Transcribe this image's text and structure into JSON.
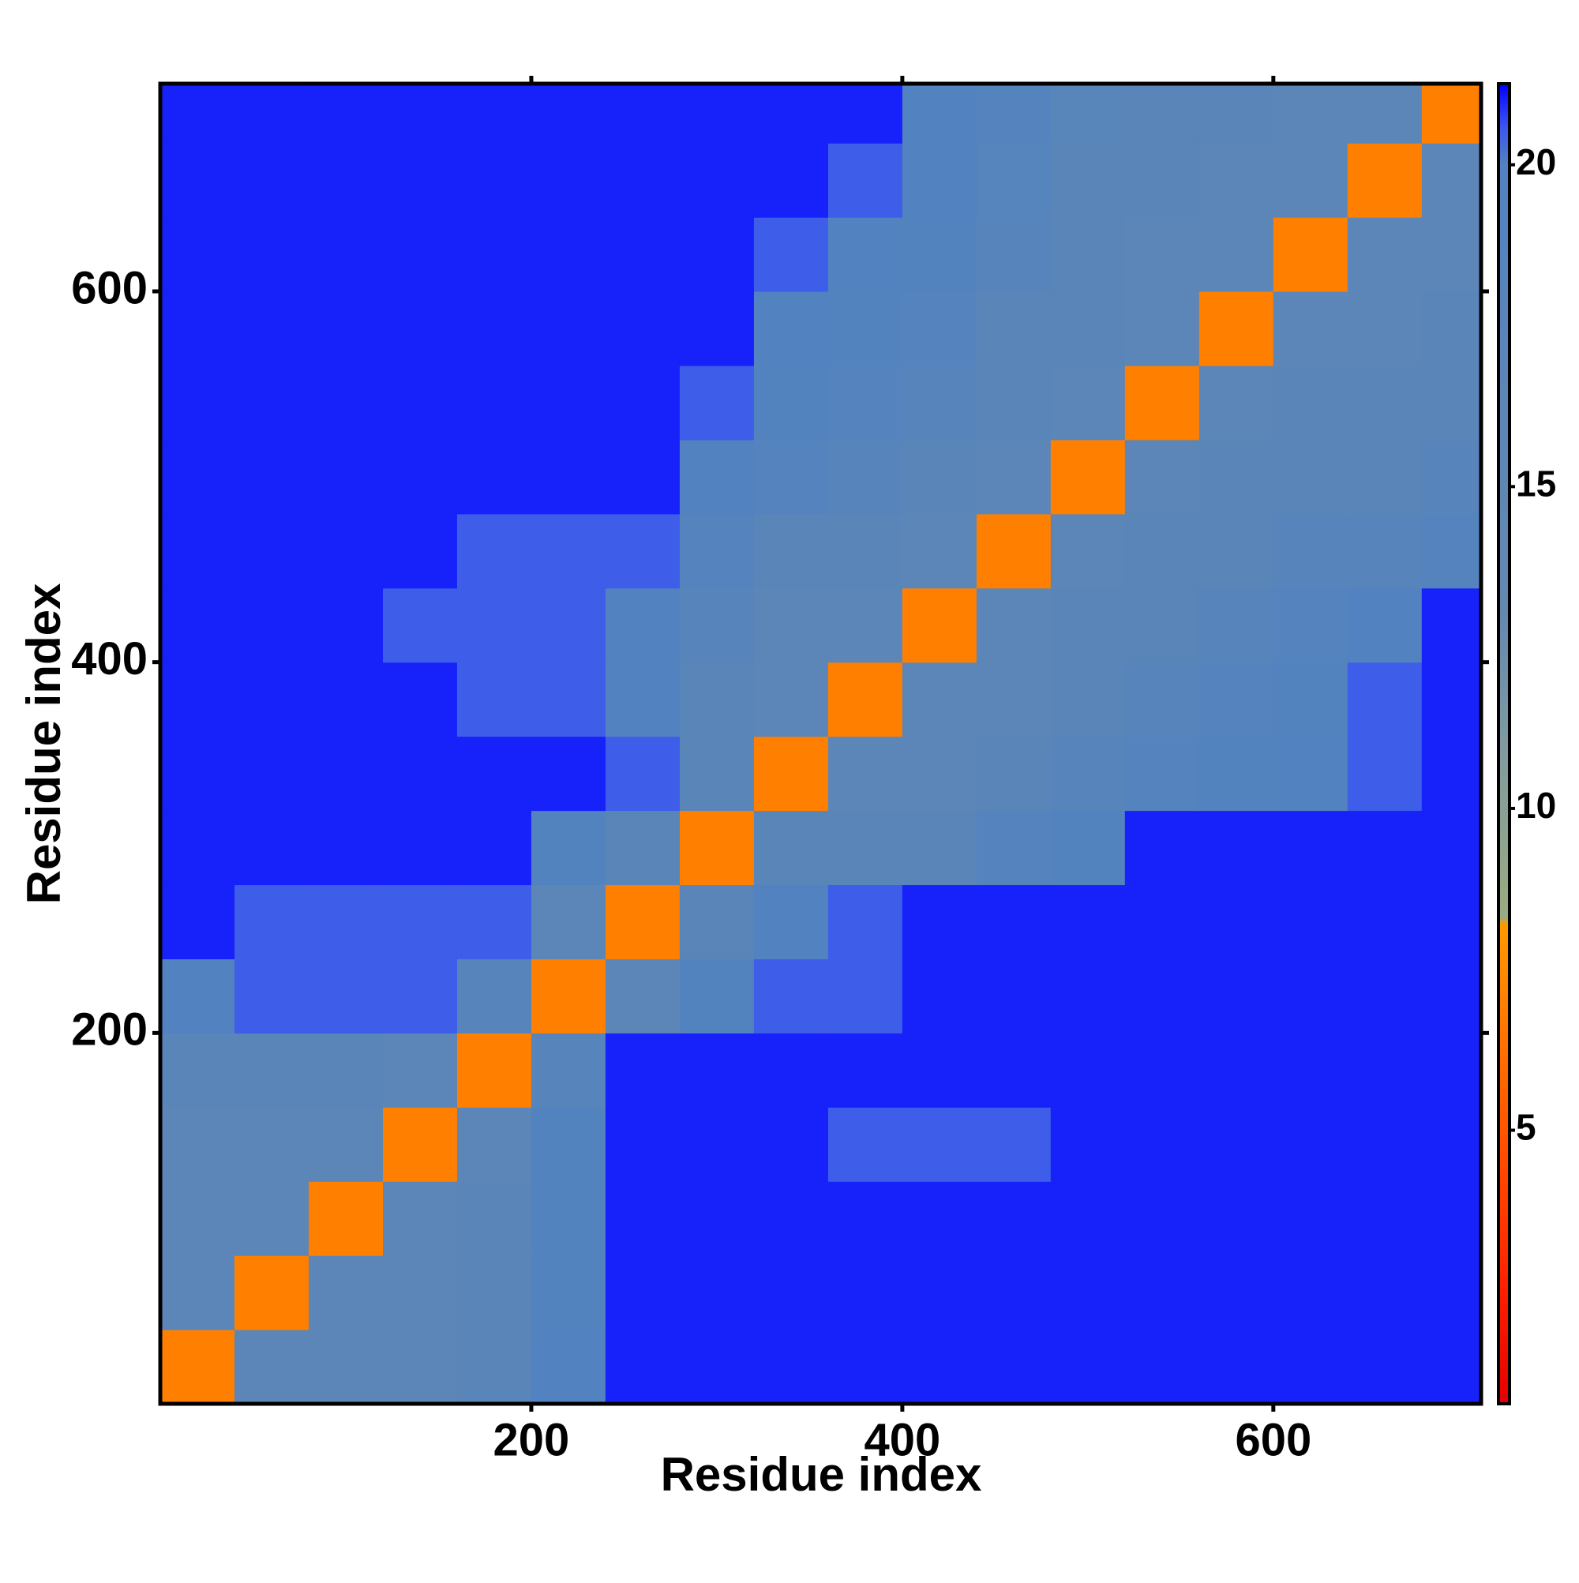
{
  "chart_data": {
    "type": "heatmap",
    "x_label": "Residue index",
    "y_label": "Residue index",
    "xlim": [
      0,
      712
    ],
    "ylim": [
      0,
      712
    ],
    "xticks": [
      200,
      400,
      600
    ],
    "yticks": [
      200,
      400,
      600
    ],
    "xbins": [
      0,
      40,
      80,
      120,
      160,
      200,
      240,
      280,
      320,
      360,
      400,
      440,
      480,
      520,
      560,
      600,
      640,
      680,
      712
    ],
    "ybins": [
      0,
      40,
      80,
      120,
      160,
      200,
      240,
      280,
      320,
      360,
      400,
      440,
      480,
      520,
      560,
      600,
      640,
      680,
      712
    ],
    "z": [
      [
        7,
        16,
        16,
        16,
        17,
        20,
        21,
        21,
        21,
        21,
        21,
        21,
        21,
        21,
        21,
        21,
        21,
        21
      ],
      [
        16,
        7,
        16,
        16,
        17,
        19.5,
        21,
        21,
        21,
        21,
        21,
        21,
        21,
        21,
        21,
        21,
        21,
        21
      ],
      [
        16,
        16,
        7,
        16,
        17,
        19.5,
        21,
        21,
        21,
        21,
        21,
        21,
        21,
        21,
        21,
        21,
        21,
        21
      ],
      [
        16,
        16,
        16,
        7,
        16,
        19.5,
        21,
        21,
        21,
        20.5,
        20.5,
        20.5,
        21,
        21,
        21,
        21,
        21,
        21
      ],
      [
        17,
        17,
        17,
        16,
        7,
        18,
        21,
        21,
        21,
        21,
        21,
        21,
        21,
        21,
        21,
        21,
        21,
        21
      ],
      [
        20,
        20.5,
        20.5,
        20.5,
        18,
        7,
        16,
        19.5,
        20.5,
        20.5,
        21,
        21,
        21,
        21,
        21,
        21,
        21,
        21
      ],
      [
        21,
        20.5,
        20.5,
        20.5,
        20.5,
        16,
        7,
        17,
        20,
        20.5,
        21,
        21,
        21,
        21,
        21,
        21,
        21,
        21
      ],
      [
        21,
        21,
        21,
        21,
        21,
        19.5,
        17,
        7,
        17,
        17,
        17,
        19,
        19.5,
        21,
        21,
        21,
        21,
        21
      ],
      [
        21,
        21,
        21,
        21,
        21,
        21,
        20.5,
        17,
        7,
        16,
        16,
        17,
        18,
        19,
        19.5,
        20,
        20.5,
        21
      ],
      [
        21,
        21,
        21,
        21,
        20.5,
        20.5,
        20,
        17,
        16,
        7,
        16,
        16,
        17,
        18,
        19,
        19.5,
        20.5,
        21
      ],
      [
        21,
        21,
        21,
        20.5,
        20.5,
        20.5,
        20,
        18,
        16,
        16,
        7,
        16,
        17,
        17,
        18,
        19,
        20,
        21
      ],
      [
        21,
        21,
        21,
        21,
        20.5,
        20.5,
        20.5,
        19,
        17,
        17,
        16,
        7,
        16,
        17,
        17,
        18,
        18,
        19
      ],
      [
        21,
        21,
        21,
        21,
        21,
        21,
        21,
        20,
        19,
        18,
        17,
        16,
        7,
        16,
        17,
        17,
        17,
        18
      ],
      [
        21,
        21,
        21,
        21,
        21,
        21,
        21,
        20.5,
        19.5,
        19,
        18,
        17,
        16,
        7,
        16,
        17,
        17,
        17
      ],
      [
        21,
        21,
        21,
        21,
        21,
        21,
        21,
        21,
        20,
        19.5,
        19,
        17,
        17,
        16,
        7,
        16,
        16,
        17
      ],
      [
        21,
        21,
        21,
        21,
        21,
        21,
        21,
        21,
        20.5,
        20,
        19.5,
        18,
        17,
        16,
        16,
        7,
        16,
        16
      ],
      [
        21,
        21,
        21,
        21,
        21,
        21,
        21,
        21,
        21,
        20.5,
        20,
        18.5,
        17,
        17,
        16,
        16,
        7,
        16
      ],
      [
        21,
        21,
        21,
        21,
        21,
        21,
        21,
        21,
        21,
        21,
        20,
        19,
        17.5,
        17,
        17,
        16,
        16,
        7
      ]
    ],
    "zlim": [
      0.75,
      21.26
    ],
    "zticks": [
      5,
      10,
      15,
      20
    ],
    "colorscale": [
      [
        0.75,
        "#e60000"
      ],
      [
        3,
        "#ff2a00"
      ],
      [
        6,
        "#ff6a00"
      ],
      [
        8.2,
        "#ff9900"
      ],
      [
        8.3,
        "#9aab80"
      ],
      [
        11,
        "#7f9aa0"
      ],
      [
        13,
        "#6489b0"
      ],
      [
        20,
        "#5282c0"
      ],
      [
        20.6,
        "#3a55f0"
      ],
      [
        21.26,
        "#0000ff"
      ]
    ]
  }
}
